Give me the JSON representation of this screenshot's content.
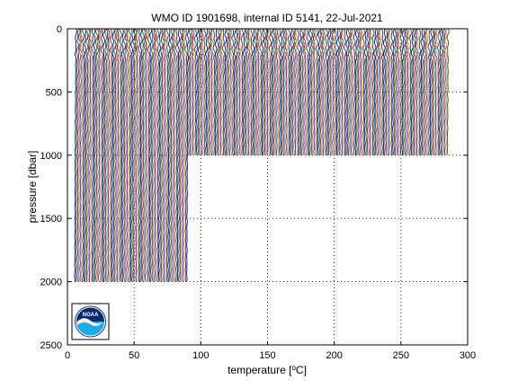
{
  "chart_data": {
    "type": "line",
    "title": "WMO ID 1901698, internal ID 5141, 22-Jul-2021",
    "xlabel_prefix": "temperature [",
    "xlabel_super": "o",
    "xlabel_suffix": "C]",
    "ylabel": "pressure [dbar]",
    "xlim": [
      0,
      300
    ],
    "ylim": [
      0,
      2500
    ],
    "y_reversed": true,
    "xticks": [
      0,
      50,
      100,
      150,
      200,
      250,
      300
    ],
    "yticks": [
      0,
      500,
      1000,
      1500,
      2000,
      2500
    ],
    "grid": "dotted",
    "profile_count": 280,
    "profile_offset_step": 1,
    "deep_profiles_until_index": 85,
    "deep_profile_max_pressure": 2000,
    "shallow_profile_max_pressure": 1000,
    "series_colors": [
      "#0000ff",
      "#008000",
      "#ff0000",
      "#00bfbf",
      "#bf00bf",
      "#bfbf00",
      "#404040"
    ]
  },
  "logo": {
    "text": "NOAA",
    "colors": {
      "dark_blue": "#0a2a6b",
      "light_blue": "#1fa9e8",
      "white": "#ffffff"
    }
  }
}
